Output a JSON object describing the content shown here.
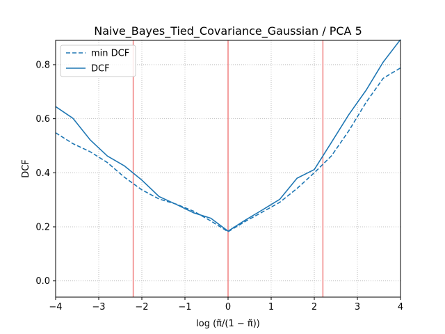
{
  "chart_data": {
    "type": "line",
    "title": "Naive_Bayes_Tied_Covariance_Gaussian / PCA 5",
    "xlabel": "log (π̃/(1 − π̃))",
    "ylabel": "DCF",
    "xlim": [
      -4,
      4
    ],
    "ylim": [
      -0.06,
      0.89
    ],
    "xticks": [
      -4,
      -3,
      -2,
      -1,
      0,
      1,
      2,
      3,
      4
    ],
    "yticks": [
      0.0,
      0.2,
      0.4,
      0.6,
      0.8
    ],
    "tick_labels_x": [
      "−4",
      "−3",
      "−2",
      "−1",
      "0",
      "1",
      "2",
      "3",
      "4"
    ],
    "tick_labels_y": [
      "0.0",
      "0.2",
      "0.4",
      "0.6",
      "0.8"
    ],
    "grid": true,
    "legend_position": "top-left",
    "vlines": [
      {
        "x": -2.2,
        "color": "#f08080"
      },
      {
        "x": 0.0,
        "color": "#f08080"
      },
      {
        "x": 2.2,
        "color": "#f08080"
      }
    ],
    "series": [
      {
        "name": "min DCF",
        "style": "dashed",
        "color": "#1f77b4",
        "x": [
          -4.0,
          -3.6,
          -3.2,
          -2.8,
          -2.4,
          -2.0,
          -1.6,
          -1.2,
          -0.8,
          -0.4,
          0.0,
          0.4,
          0.8,
          1.2,
          1.6,
          2.0,
          2.4,
          2.8,
          3.2,
          3.6,
          4.0
        ],
        "y": [
          0.548,
          0.508,
          0.478,
          0.438,
          0.383,
          0.337,
          0.303,
          0.284,
          0.258,
          0.222,
          0.182,
          0.22,
          0.255,
          0.291,
          0.342,
          0.4,
          0.463,
          0.555,
          0.66,
          0.75,
          0.788
        ]
      },
      {
        "name": "DCF",
        "style": "solid",
        "color": "#1f77b4",
        "x": [
          -4.0,
          -3.6,
          -3.2,
          -2.8,
          -2.4,
          -2.0,
          -1.6,
          -1.2,
          -0.8,
          -0.4,
          0.0,
          0.4,
          0.8,
          1.2,
          1.6,
          2.0,
          2.4,
          2.8,
          3.2,
          3.6,
          4.0
        ],
        "y": [
          0.645,
          0.602,
          0.522,
          0.462,
          0.425,
          0.373,
          0.312,
          0.283,
          0.252,
          0.232,
          0.184,
          0.225,
          0.263,
          0.302,
          0.38,
          0.412,
          0.513,
          0.615,
          0.705,
          0.81,
          0.893
        ]
      }
    ]
  }
}
